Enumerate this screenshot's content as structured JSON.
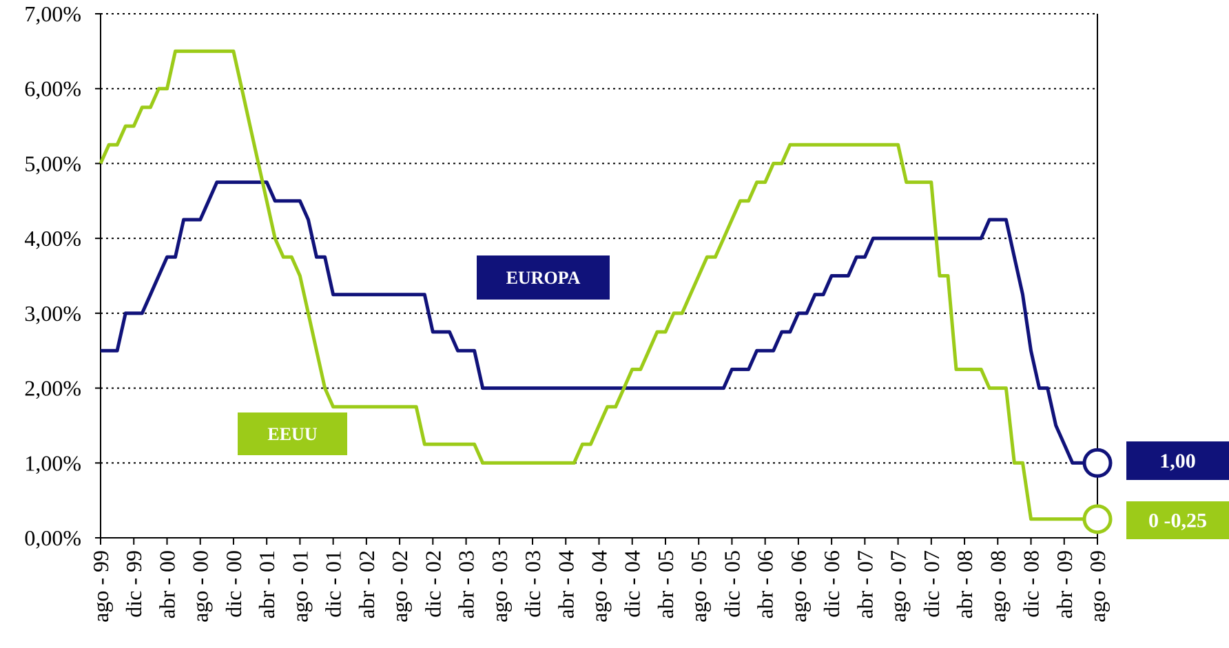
{
  "chart_data": {
    "type": "line",
    "x": [
      "1999-08",
      "1999-09",
      "1999-10",
      "1999-11",
      "1999-12",
      "2000-01",
      "2000-02",
      "2000-03",
      "2000-04",
      "2000-05",
      "2000-06",
      "2000-07",
      "2000-08",
      "2000-09",
      "2000-10",
      "2000-11",
      "2000-12",
      "2001-01",
      "2001-02",
      "2001-03",
      "2001-04",
      "2001-05",
      "2001-06",
      "2001-07",
      "2001-08",
      "2001-09",
      "2001-10",
      "2001-11",
      "2001-12",
      "2002-01",
      "2002-02",
      "2002-03",
      "2002-04",
      "2002-05",
      "2002-06",
      "2002-07",
      "2002-08",
      "2002-09",
      "2002-10",
      "2002-11",
      "2002-12",
      "2003-01",
      "2003-02",
      "2003-03",
      "2003-04",
      "2003-05",
      "2003-06",
      "2003-07",
      "2003-08",
      "2003-09",
      "2003-10",
      "2003-11",
      "2003-12",
      "2004-01",
      "2004-02",
      "2004-03",
      "2004-04",
      "2004-05",
      "2004-06",
      "2004-07",
      "2004-08",
      "2004-09",
      "2004-10",
      "2004-11",
      "2004-12",
      "2005-01",
      "2005-02",
      "2005-03",
      "2005-04",
      "2005-05",
      "2005-06",
      "2005-07",
      "2005-08",
      "2005-09",
      "2005-10",
      "2005-11",
      "2005-12",
      "2006-01",
      "2006-02",
      "2006-03",
      "2006-04",
      "2006-05",
      "2006-06",
      "2006-07",
      "2006-08",
      "2006-09",
      "2006-10",
      "2006-11",
      "2006-12",
      "2007-01",
      "2007-02",
      "2007-03",
      "2007-04",
      "2007-05",
      "2007-06",
      "2007-07",
      "2007-08",
      "2007-09",
      "2007-10",
      "2007-11",
      "2007-12",
      "2008-01",
      "2008-02",
      "2008-03",
      "2008-04",
      "2008-05",
      "2008-06",
      "2008-07",
      "2008-08",
      "2008-09",
      "2008-10",
      "2008-11",
      "2008-12",
      "2009-01",
      "2009-02",
      "2009-03",
      "2009-04",
      "2009-05",
      "2009-06",
      "2009-07",
      "2009-08"
    ],
    "series": [
      {
        "name": "EUROPA",
        "color": "#10127a",
        "end_label": "1,00",
        "values": [
          2.5,
          2.5,
          2.5,
          3.0,
          3.0,
          3.0,
          3.25,
          3.5,
          3.75,
          3.75,
          4.25,
          4.25,
          4.25,
          4.5,
          4.75,
          4.75,
          4.75,
          4.75,
          4.75,
          4.75,
          4.75,
          4.5,
          4.5,
          4.5,
          4.5,
          4.25,
          3.75,
          3.75,
          3.25,
          3.25,
          3.25,
          3.25,
          3.25,
          3.25,
          3.25,
          3.25,
          3.25,
          3.25,
          3.25,
          3.25,
          2.75,
          2.75,
          2.75,
          2.5,
          2.5,
          2.5,
          2.0,
          2.0,
          2.0,
          2.0,
          2.0,
          2.0,
          2.0,
          2.0,
          2.0,
          2.0,
          2.0,
          2.0,
          2.0,
          2.0,
          2.0,
          2.0,
          2.0,
          2.0,
          2.0,
          2.0,
          2.0,
          2.0,
          2.0,
          2.0,
          2.0,
          2.0,
          2.0,
          2.0,
          2.0,
          2.0,
          2.25,
          2.25,
          2.25,
          2.5,
          2.5,
          2.5,
          2.75,
          2.75,
          3.0,
          3.0,
          3.25,
          3.25,
          3.5,
          3.5,
          3.5,
          3.75,
          3.75,
          4.0,
          4.0,
          4.0,
          4.0,
          4.0,
          4.0,
          4.0,
          4.0,
          4.0,
          4.0,
          4.0,
          4.0,
          4.0,
          4.0,
          4.25,
          4.25,
          4.25,
          3.75,
          3.25,
          2.5,
          2.0,
          2.0,
          1.5,
          1.25,
          1.0,
          1.0,
          1.0,
          1.0
        ]
      },
      {
        "name": "EEUU",
        "color": "#9ccb19",
        "end_label": "0 -0,25",
        "values": [
          5.0,
          5.25,
          5.25,
          5.5,
          5.5,
          5.75,
          5.75,
          6.0,
          6.0,
          6.5,
          6.5,
          6.5,
          6.5,
          6.5,
          6.5,
          6.5,
          6.5,
          6.0,
          5.5,
          5.0,
          4.5,
          4.0,
          3.75,
          3.75,
          3.5,
          3.0,
          2.5,
          2.0,
          1.75,
          1.75,
          1.75,
          1.75,
          1.75,
          1.75,
          1.75,
          1.75,
          1.75,
          1.75,
          1.75,
          1.25,
          1.25,
          1.25,
          1.25,
          1.25,
          1.25,
          1.25,
          1.0,
          1.0,
          1.0,
          1.0,
          1.0,
          1.0,
          1.0,
          1.0,
          1.0,
          1.0,
          1.0,
          1.0,
          1.25,
          1.25,
          1.5,
          1.75,
          1.75,
          2.0,
          2.25,
          2.25,
          2.5,
          2.75,
          2.75,
          3.0,
          3.0,
          3.25,
          3.5,
          3.75,
          3.75,
          4.0,
          4.25,
          4.5,
          4.5,
          4.75,
          4.75,
          5.0,
          5.0,
          5.25,
          5.25,
          5.25,
          5.25,
          5.25,
          5.25,
          5.25,
          5.25,
          5.25,
          5.25,
          5.25,
          5.25,
          5.25,
          5.25,
          4.75,
          4.75,
          4.75,
          4.75,
          3.5,
          3.5,
          2.25,
          2.25,
          2.25,
          2.25,
          2.0,
          2.0,
          2.0,
          1.0,
          1.0,
          0.25,
          0.25,
          0.25,
          0.25,
          0.25,
          0.25,
          0.25,
          0.25,
          0.25
        ]
      }
    ],
    "xlim": [
      "1999-08",
      "2009-08"
    ],
    "xticks": [
      {
        "value": "1999-08",
        "label": "ago - 99"
      },
      {
        "value": "1999-12",
        "label": "dic - 99"
      },
      {
        "value": "2000-04",
        "label": "abr - 00"
      },
      {
        "value": "2000-08",
        "label": "ago - 00"
      },
      {
        "value": "2000-12",
        "label": "dic - 00"
      },
      {
        "value": "2001-04",
        "label": "abr - 01"
      },
      {
        "value": "2001-08",
        "label": "ago - 01"
      },
      {
        "value": "2001-12",
        "label": "dic - 01"
      },
      {
        "value": "2002-04",
        "label": "abr - 02"
      },
      {
        "value": "2002-08",
        "label": "ago - 02"
      },
      {
        "value": "2002-12",
        "label": "dic - 02"
      },
      {
        "value": "2003-04",
        "label": "abr - 03"
      },
      {
        "value": "2003-08",
        "label": "ago - 03"
      },
      {
        "value": "2003-12",
        "label": "dic - 03"
      },
      {
        "value": "2004-04",
        "label": "abr - 04"
      },
      {
        "value": "2004-08",
        "label": "ago - 04"
      },
      {
        "value": "2004-12",
        "label": "dic - 04"
      },
      {
        "value": "2005-04",
        "label": "abr - 05"
      },
      {
        "value": "2005-08",
        "label": "ago - 05"
      },
      {
        "value": "2005-12",
        "label": "dic - 05"
      },
      {
        "value": "2006-04",
        "label": "abr - 06"
      },
      {
        "value": "2006-08",
        "label": "ago - 06"
      },
      {
        "value": "2006-12",
        "label": "dic - 06"
      },
      {
        "value": "2007-04",
        "label": "abr - 07"
      },
      {
        "value": "2007-08",
        "label": "ago - 07"
      },
      {
        "value": "2007-12",
        "label": "dic - 07"
      },
      {
        "value": "2008-04",
        "label": "abr - 08"
      },
      {
        "value": "2008-08",
        "label": "ago - 08"
      },
      {
        "value": "2008-12",
        "label": "dic - 08"
      },
      {
        "value": "2009-04",
        "label": "abr - 09"
      },
      {
        "value": "2009-08",
        "label": "ago - 09"
      }
    ],
    "ylim": [
      0,
      7
    ],
    "yticks": [
      {
        "value": 0,
        "label": "0,00%"
      },
      {
        "value": 1,
        "label": "1,00%"
      },
      {
        "value": 2,
        "label": "2,00%"
      },
      {
        "value": 3,
        "label": "3,00%"
      },
      {
        "value": 4,
        "label": "4,00%"
      },
      {
        "value": 5,
        "label": "5,00%"
      },
      {
        "value": 6,
        "label": "6,00%"
      },
      {
        "value": 7,
        "label": "7,00%"
      }
    ],
    "grid": true
  }
}
